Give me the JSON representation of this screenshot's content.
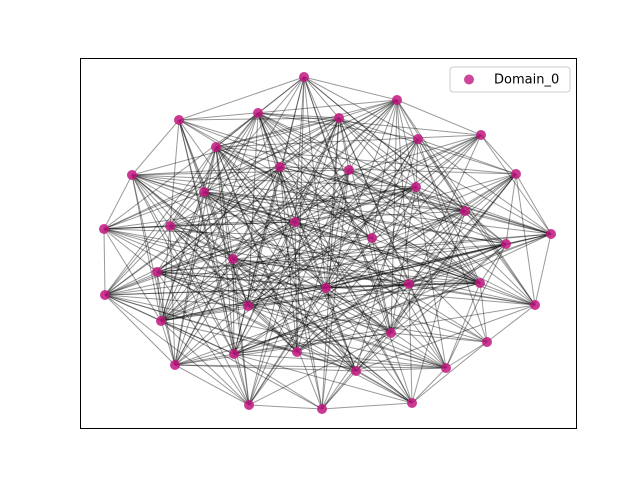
{
  "legend": {
    "label": "Domain_0"
  }
}
